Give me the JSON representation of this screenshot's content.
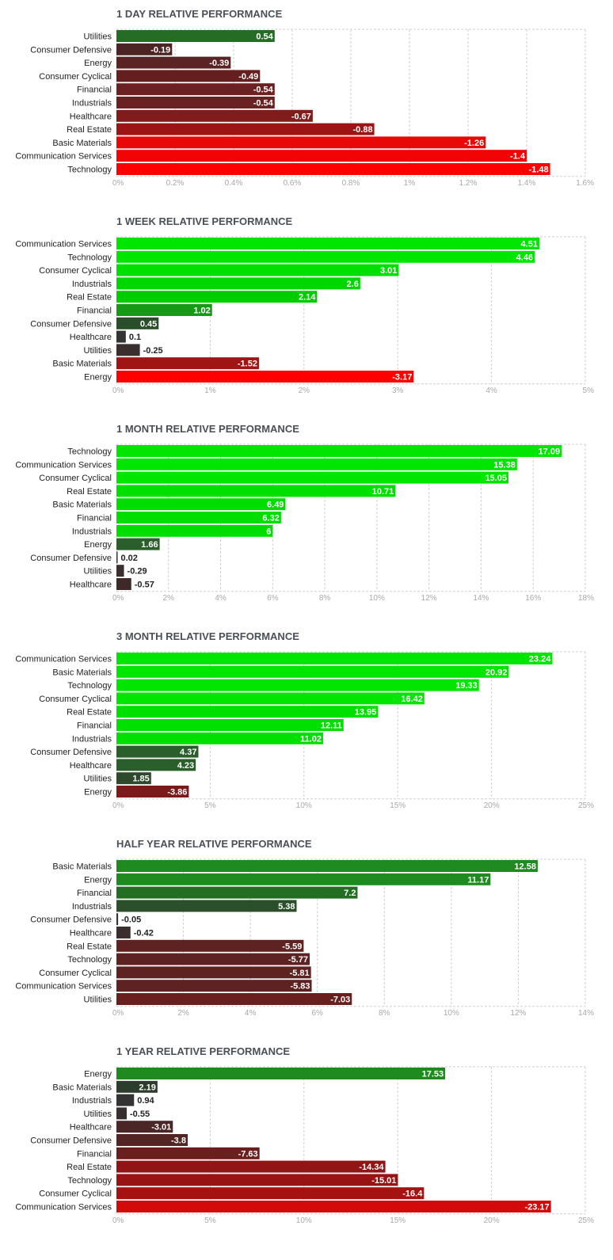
{
  "chart_data": [
    {
      "type": "bar",
      "orientation": "horizontal",
      "title": "1 DAY RELATIVE PERFORMANCE",
      "categories": [
        "Utilities",
        "Consumer Defensive",
        "Energy",
        "Consumer Cyclical",
        "Financial",
        "Industrials",
        "Healthcare",
        "Real Estate",
        "Basic Materials",
        "Communication Services",
        "Technology"
      ],
      "values": [
        0.54,
        -0.19,
        -0.39,
        -0.49,
        -0.54,
        -0.54,
        -0.67,
        -0.88,
        -1.26,
        -1.4,
        -1.48
      ],
      "value_labels": [
        "0.54",
        "-0.19",
        "-0.39",
        "-0.49",
        "-0.54",
        "-0.54",
        "-0.67",
        "-0.88",
        "-1.26",
        "-1.4",
        "-1.48"
      ],
      "colors": [
        "#256c25",
        "#4c2424",
        "#5b2323",
        "#651f1f",
        "#6b2121",
        "#6b2121",
        "#801c1c",
        "#9c1414",
        "#e80808",
        "#f20404",
        "#ff0000"
      ],
      "xlim": [
        0,
        1.6
      ],
      "xticks": [
        "0%",
        "0.2%",
        "0.4%",
        "0.6%",
        "0.8%",
        "1%",
        "1.2%",
        "1.4%",
        "1.6%"
      ]
    },
    {
      "type": "bar",
      "orientation": "horizontal",
      "title": "1 WEEK RELATIVE PERFORMANCE",
      "categories": [
        "Communication Services",
        "Technology",
        "Consumer Cyclical",
        "Industrials",
        "Real Estate",
        "Financial",
        "Consumer Defensive",
        "Healthcare",
        "Utilities",
        "Basic Materials",
        "Energy"
      ],
      "values": [
        4.51,
        4.46,
        3.01,
        2.6,
        2.14,
        1.02,
        0.45,
        0.1,
        -0.25,
        -1.52,
        -3.17
      ],
      "value_labels": [
        "4.51",
        "4.46",
        "3.01",
        "2.6",
        "2.14",
        "1.02",
        "0.45",
        "0.1",
        "-0.25",
        "-1.52",
        "-3.17"
      ],
      "colors": [
        "#00e600",
        "#00e600",
        "#00e000",
        "#00d600",
        "#00cc00",
        "#169a16",
        "#2a4d2a",
        "#333333",
        "#3a2e2e",
        "#a01414",
        "#ff0000"
      ],
      "xlim": [
        0,
        5
      ],
      "xticks": [
        "0%",
        "1%",
        "2%",
        "3%",
        "4%",
        "5%"
      ]
    },
    {
      "type": "bar",
      "orientation": "horizontal",
      "title": "1 MONTH RELATIVE PERFORMANCE",
      "categories": [
        "Technology",
        "Communication Services",
        "Consumer Cyclical",
        "Real Estate",
        "Basic Materials",
        "Financial",
        "Industrials",
        "Energy",
        "Consumer Defensive",
        "Utilities",
        "Healthcare"
      ],
      "values": [
        17.09,
        15.38,
        15.05,
        10.71,
        6.49,
        6.32,
        6,
        1.66,
        0.02,
        -0.29,
        -0.57
      ],
      "value_labels": [
        "17.09",
        "15.38",
        "15.05",
        "10.71",
        "6.49",
        "6.32",
        "6",
        "1.66",
        "0.02",
        "-0.29",
        "-0.57"
      ],
      "colors": [
        "#00e600",
        "#00e600",
        "#00e600",
        "#00e000",
        "#00dd00",
        "#00dd00",
        "#00dd00",
        "#2a5e2a",
        "#333333",
        "#3a2e2e",
        "#3e2828"
      ],
      "xlim": [
        0,
        18
      ],
      "xticks": [
        "0%",
        "2%",
        "4%",
        "6%",
        "8%",
        "10%",
        "12%",
        "14%",
        "16%",
        "18%"
      ]
    },
    {
      "type": "bar",
      "orientation": "horizontal",
      "title": "3 MONTH RELATIVE PERFORMANCE",
      "categories": [
        "Communication Services",
        "Basic Materials",
        "Technology",
        "Consumer Cyclical",
        "Real Estate",
        "Financial",
        "Industrials",
        "Consumer Defensive",
        "Healthcare",
        "Utilities",
        "Energy"
      ],
      "values": [
        23.24,
        20.92,
        19.33,
        16.42,
        13.95,
        12.11,
        11.02,
        4.37,
        4.23,
        1.85,
        -3.86
      ],
      "value_labels": [
        "23.24",
        "20.92",
        "19.33",
        "16.42",
        "13.95",
        "12.11",
        "11.02",
        "4.37",
        "4.23",
        "1.85",
        "-3.86"
      ],
      "colors": [
        "#00e600",
        "#00e600",
        "#00e600",
        "#00e600",
        "#00e000",
        "#00e000",
        "#00e000",
        "#2a5e2a",
        "#2a5e2a",
        "#2d4a2d",
        "#7a1a1a"
      ],
      "xlim": [
        0,
        25
      ],
      "xticks": [
        "0%",
        "5%",
        "10%",
        "15%",
        "20%",
        "25%"
      ]
    },
    {
      "type": "bar",
      "orientation": "horizontal",
      "title": "HALF YEAR RELATIVE PERFORMANCE",
      "categories": [
        "Basic Materials",
        "Energy",
        "Financial",
        "Industrials",
        "Consumer Defensive",
        "Healthcare",
        "Real Estate",
        "Technology",
        "Consumer Cyclical",
        "Communication Services",
        "Utilities"
      ],
      "values": [
        12.58,
        11.17,
        7.2,
        5.38,
        -0.05,
        -0.42,
        -5.59,
        -5.77,
        -5.81,
        -5.83,
        -7.03
      ],
      "value_labels": [
        "12.58",
        "11.17",
        "7.2",
        "5.38",
        "-0.05",
        "-0.42",
        "-5.59",
        "-5.77",
        "-5.81",
        "-5.83",
        "-7.03"
      ],
      "colors": [
        "#1f8a1f",
        "#1f8a1f",
        "#226e22",
        "#2a4f2a",
        "#333333",
        "#3a2e2e",
        "#5e2222",
        "#5e2222",
        "#5e2222",
        "#5e2222",
        "#6a1f1f"
      ],
      "xlim": [
        0,
        14
      ],
      "xticks": [
        "0%",
        "2%",
        "4%",
        "6%",
        "8%",
        "10%",
        "12%",
        "14%"
      ]
    },
    {
      "type": "bar",
      "orientation": "horizontal",
      "title": "1 YEAR RELATIVE PERFORMANCE",
      "categories": [
        "Energy",
        "Basic Materials",
        "Industrials",
        "Utilities",
        "Healthcare",
        "Consumer Defensive",
        "Financial",
        "Real Estate",
        "Technology",
        "Consumer Cyclical",
        "Communication Services"
      ],
      "values": [
        17.53,
        2.19,
        0.94,
        -0.55,
        -3.01,
        -3.8,
        -7.63,
        -14.34,
        -15.01,
        -16.4,
        -23.17
      ],
      "value_labels": [
        "17.53",
        "2.19",
        "0.94",
        "-0.55",
        "-3.01",
        "-3.8",
        "-7.63",
        "-14.34",
        "-15.01",
        "-16.4",
        "-23.17"
      ],
      "colors": [
        "#1f8a1f",
        "#2d3d2d",
        "#333333",
        "#383030",
        "#4a2626",
        "#522424",
        "#6a1f1f",
        "#921515",
        "#981414",
        "#a41212",
        "#d40a0a"
      ],
      "xlim": [
        0,
        25
      ],
      "xticks": [
        "0%",
        "5%",
        "10%",
        "15%",
        "20%",
        "25%"
      ]
    }
  ]
}
